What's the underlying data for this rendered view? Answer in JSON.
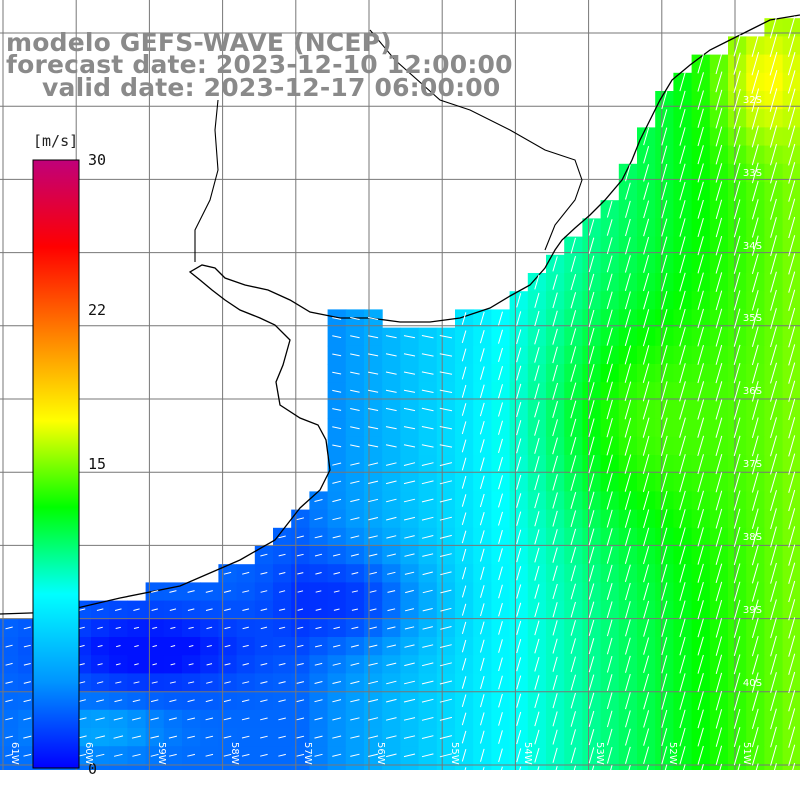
{
  "title": {
    "model": "modelo GEFS-WAVE (NCEP)",
    "forecast": "forecast date: 2023-12-10 12:00:00",
    "valid": "valid date: 2023-12-17 06:00:00"
  },
  "colorbar": {
    "unit": "[m/s]",
    "ticks": [
      "30",
      "22",
      "15",
      "0"
    ],
    "range": [
      0,
      30
    ],
    "colors": [
      "#0000ff",
      "#0096ff",
      "#00ffff",
      "#00ff00",
      "#ffff00",
      "#ff8000",
      "#ff0000",
      "#c0007a"
    ]
  },
  "grid": {
    "lat_labels": [
      "32S",
      "33S",
      "34S",
      "35S",
      "36S",
      "37S",
      "38S",
      "39S",
      "40S"
    ],
    "lon_labels": [
      "61W",
      "60W",
      "59W",
      "58W",
      "57W",
      "56W",
      "55W",
      "54W",
      "53W",
      "52W",
      "51W"
    ]
  },
  "colors": {
    "land": "#ffffff",
    "coast": "#000000",
    "grid": "#777777",
    "arrows": "#ffffff",
    "title": "#8a8a8a"
  }
}
